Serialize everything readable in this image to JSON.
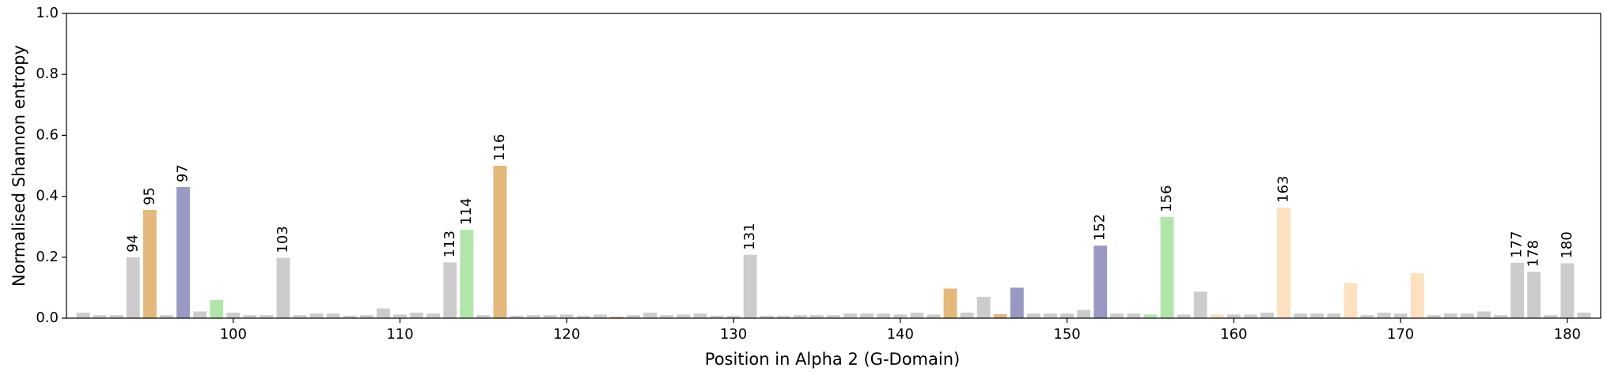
{
  "chart_data": {
    "type": "bar",
    "xlabel": "Position in Alpha 2 (G-Domain)",
    "ylabel": "Normalised Shannon entropy",
    "x": [
      91,
      92,
      93,
      94,
      95,
      96,
      97,
      98,
      99,
      100,
      101,
      102,
      103,
      104,
      105,
      106,
      107,
      108,
      109,
      110,
      111,
      112,
      113,
      114,
      115,
      116,
      117,
      118,
      119,
      120,
      121,
      122,
      123,
      124,
      125,
      126,
      127,
      128,
      129,
      130,
      131,
      132,
      133,
      134,
      135,
      136,
      137,
      138,
      139,
      140,
      141,
      142,
      143,
      144,
      145,
      146,
      147,
      148,
      149,
      150,
      151,
      152,
      153,
      154,
      155,
      156,
      157,
      158,
      159,
      160,
      161,
      162,
      163,
      164,
      165,
      166,
      167,
      168,
      169,
      170,
      171,
      172,
      173,
      174,
      175,
      176,
      177,
      178,
      179,
      180,
      181
    ],
    "values": [
      0.018,
      0.01,
      0.01,
      0.2,
      0.355,
      0.01,
      0.43,
      0.022,
      0.06,
      0.018,
      0.01,
      0.01,
      0.198,
      0.01,
      0.015,
      0.015,
      0.008,
      0.01,
      0.032,
      0.012,
      0.018,
      0.015,
      0.183,
      0.29,
      0.01,
      0.5,
      0.008,
      0.01,
      0.01,
      0.012,
      0.008,
      0.012,
      0.005,
      0.01,
      0.018,
      0.01,
      0.012,
      0.015,
      0.008,
      0.008,
      0.208,
      0.008,
      0.008,
      0.01,
      0.01,
      0.01,
      0.015,
      0.015,
      0.015,
      0.012,
      0.018,
      0.012,
      0.097,
      0.018,
      0.07,
      0.013,
      0.1,
      0.015,
      0.015,
      0.015,
      0.027,
      0.238,
      0.015,
      0.015,
      0.012,
      0.332,
      0.012,
      0.087,
      0.012,
      0.012,
      0.012,
      0.018,
      0.363,
      0.015,
      0.015,
      0.015,
      0.115,
      0.01,
      0.018,
      0.015,
      0.147,
      0.01,
      0.015,
      0.015,
      0.022,
      0.01,
      0.182,
      0.152,
      0.01,
      0.18,
      0.018
    ],
    "colors": [
      "#cccccc",
      "#cccccc",
      "#cccccc",
      "#cccccc",
      "#e3b878",
      "#cccccc",
      "#9999c4",
      "#cccccc",
      "#b0e6a8",
      "#cccccc",
      "#cccccc",
      "#cccccc",
      "#cccccc",
      "#cccccc",
      "#cccccc",
      "#cccccc",
      "#cccccc",
      "#cccccc",
      "#cccccc",
      "#cccccc",
      "#cccccc",
      "#cccccc",
      "#cccccc",
      "#b0e6a8",
      "#cccccc",
      "#e3b878",
      "#cccccc",
      "#cccccc",
      "#cccccc",
      "#cccccc",
      "#cccccc",
      "#cccccc",
      "#e3b878",
      "#cccccc",
      "#cccccc",
      "#cccccc",
      "#cccccc",
      "#cccccc",
      "#cccccc",
      "#cccccc",
      "#cccccc",
      "#cccccc",
      "#cccccc",
      "#cccccc",
      "#cccccc",
      "#cccccc",
      "#cccccc",
      "#cccccc",
      "#cccccc",
      "#cccccc",
      "#cccccc",
      "#cccccc",
      "#e3b878",
      "#cccccc",
      "#cccccc",
      "#e3b878",
      "#9999c4",
      "#cccccc",
      "#cccccc",
      "#cccccc",
      "#cccccc",
      "#9999c4",
      "#cccccc",
      "#cccccc",
      "#b0e6a8",
      "#b0e6a8",
      "#cccccc",
      "#cccccc",
      "#fde0bd",
      "#cccccc",
      "#cccccc",
      "#cccccc",
      "#fde0bd",
      "#cccccc",
      "#cccccc",
      "#cccccc",
      "#fde0bd",
      "#cccccc",
      "#cccccc",
      "#cccccc",
      "#fde0bd",
      "#cccccc",
      "#cccccc",
      "#cccccc",
      "#cccccc",
      "#cccccc",
      "#cccccc",
      "#cccccc",
      "#cccccc",
      "#cccccc",
      "#cccccc"
    ],
    "bar_labels": [
      null,
      null,
      null,
      "94",
      "95",
      null,
      "97",
      null,
      null,
      null,
      null,
      null,
      "103",
      null,
      null,
      null,
      null,
      null,
      null,
      null,
      null,
      null,
      "113",
      "114",
      null,
      "116",
      null,
      null,
      null,
      null,
      null,
      null,
      null,
      null,
      null,
      null,
      null,
      null,
      null,
      null,
      "131",
      null,
      null,
      null,
      null,
      null,
      null,
      null,
      null,
      null,
      null,
      null,
      null,
      null,
      null,
      null,
      null,
      null,
      null,
      null,
      null,
      "152",
      null,
      null,
      null,
      "156",
      null,
      null,
      null,
      null,
      null,
      null,
      "163",
      null,
      null,
      null,
      null,
      null,
      null,
      null,
      null,
      null,
      null,
      null,
      null,
      null,
      "177",
      "178",
      null,
      "180",
      null
    ],
    "bar_width": 0.8,
    "xlim": [
      90,
      182
    ],
    "xticks": [
      100,
      110,
      120,
      130,
      140,
      150,
      160,
      170,
      180
    ],
    "ylim": [
      0,
      1
    ],
    "yticks": [
      {
        "value": 0,
        "label": "0.0"
      },
      0.2,
      0.4,
      0.6,
      0.8,
      {
        "value": 1,
        "label": "1.0"
      }
    ]
  }
}
